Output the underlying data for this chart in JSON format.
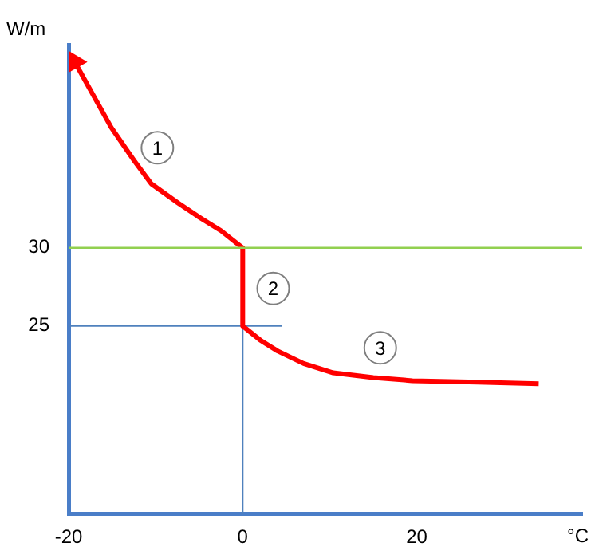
{
  "chart_data": {
    "type": "line",
    "xlabel": "°C",
    "ylabel": "W/m",
    "xlim": [
      -20,
      39
    ],
    "ylim": [
      13,
      43
    ],
    "xticks": [
      -20,
      0,
      20
    ],
    "yticks": [
      25,
      30
    ],
    "grid": false,
    "legend": false,
    "marker": "none",
    "line_style": "solid",
    "series": [
      {
        "color": "#ff0000",
        "x": [
          -19.3,
          -17,
          -15.1,
          -12.5,
          -10.5,
          -7.5,
          -5.1,
          -2.5,
          0,
          0,
          2,
          4,
          7,
          10.4,
          15,
          19.5,
          27,
          34
        ],
        "values": [
          41.9,
          39.6,
          37.7,
          35.6,
          34.1,
          32.9,
          32,
          31.1,
          30,
          25,
          24.1,
          23.4,
          22.6,
          22,
          21.7,
          21.5,
          21.4,
          21.3
        ]
      },
      {
        "color": "#4f81bd",
        "x": [
          -20,
          4.5
        ],
        "values": [
          25,
          25
        ]
      },
      {
        "color": "#4f81bd",
        "x": [
          0,
          0
        ],
        "values": [
          25,
          13
        ]
      }
    ],
    "ref_lines": [
      {
        "axis": "y",
        "value": 30,
        "color": "#92d050"
      }
    ],
    "annotations": [
      {
        "text": "1",
        "x": -9.8,
        "y": 36.4
      },
      {
        "text": "2",
        "x": 3.5,
        "y": 27.4
      },
      {
        "text": "3",
        "x": 15.8,
        "y": 23.6
      }
    ]
  }
}
